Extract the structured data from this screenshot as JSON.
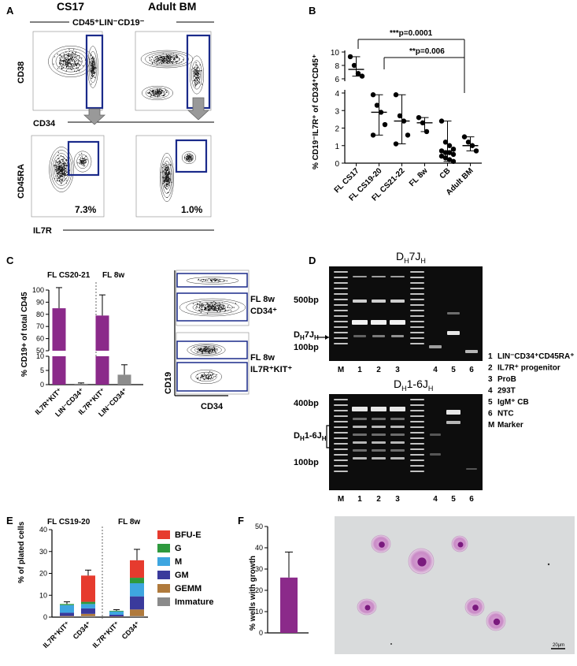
{
  "panels": {
    "A": {
      "letter": "A",
      "col1": "CS17",
      "col2": "Adult BM",
      "gate_label": "CD45⁺LIN⁻CD19⁻",
      "y_top": "CD38",
      "x_top": "CD34",
      "y_bottom": "CD45RA",
      "x_bottom": "IL7R",
      "pct1": "7.3%",
      "pct2": "1.0%"
    },
    "B": {
      "letter": "B",
      "ylabel": "% CD19⁻IL7R⁺ of CD34⁺CD45⁺",
      "sig1": "***p=0.0001",
      "sig2": "**p=0.006"
    },
    "C": {
      "letter": "C",
      "group1": "FL CS20-21",
      "group2": "FL 8w",
      "ylabel": "% CD19+ of total CD45",
      "facs1_l1": "FL 8w",
      "facs1_l2": "CD34⁺",
      "facs2_l1": "FL 8w",
      "facs2_l2": "IL7R⁺KIT⁺",
      "facs_y": "CD19",
      "facs_x": "CD34"
    },
    "D": {
      "letter": "D",
      "gel1_title": "Dₕ 7Jₕ",
      "gel1_title_main": "D",
      "gel1_title_sub1": "H",
      "gel1_title_mid": "7J",
      "gel1_title_sub2": "H",
      "gel2_title_main": "D",
      "gel2_title_sub1": "H",
      "gel2_title_mid": "1-6J",
      "gel2_title_sub2": "H",
      "marker500": "500bp",
      "marker100": "100bp",
      "marker400": "400bp",
      "marker100b": "100bp",
      "band1_main": "D",
      "band1_sub1": "H",
      "band1_mid": "7J",
      "band1_sub2": "H",
      "band2_main": "D",
      "band2_sub1": "H",
      "band2_mid": "1-6J",
      "band2_sub2": "H",
      "lanes": [
        "M",
        "1",
        "2",
        "3",
        "",
        "4",
        "5",
        "6"
      ],
      "legend": [
        {
          "n": "1",
          "label": "LIN⁻CD34⁺CD45RA⁺"
        },
        {
          "n": "2",
          "label": "IL7R⁺ progenitor"
        },
        {
          "n": "3",
          "label": "ProB"
        },
        {
          "n": "4",
          "label": "293T"
        },
        {
          "n": "5",
          "label": "IgM⁺ CB"
        },
        {
          "n": "6",
          "label": "NTC"
        },
        {
          "n": "M",
          "label": "Marker"
        }
      ]
    },
    "E": {
      "letter": "E",
      "group1": "FL CS19-20",
      "group2": "FL 8w",
      "ylabel": "% of plated cells"
    },
    "F": {
      "letter": "F",
      "ylabel": "% wells with growth",
      "scale": "20μm"
    }
  },
  "chart_data": [
    {
      "panel": "B",
      "type": "scatter",
      "categories": [
        "FL CS17",
        "FL CS19-20",
        "FL CS21-22",
        "FL 8w",
        "CB",
        "Adult BM"
      ],
      "y_ticks_lower": [
        "0",
        "1",
        "2",
        "3",
        "4"
      ],
      "y_ticks_upper": [
        "6",
        "8",
        "10"
      ],
      "ylim_lower": [
        0,
        4
      ],
      "ylim_upper": [
        6,
        10
      ],
      "points": [
        [
          9.3,
          8.0,
          6.8,
          6.4
        ],
        [
          3.9,
          3.3,
          2.9,
          2.2,
          1.6
        ],
        [
          3.9,
          2.7,
          2.4,
          1.6,
          1.1
        ],
        [
          2.6,
          2.3,
          1.8
        ],
        [
          2.4,
          1.2,
          1.0,
          0.8,
          0.7,
          0.6,
          0.6,
          0.5,
          0.4,
          0.3,
          0.2,
          0.1
        ],
        [
          1.5,
          1.2,
          1.0,
          0.7
        ]
      ],
      "medians": [
        7.4,
        2.9,
        2.4,
        2.3,
        0.7,
        1.0
      ],
      "err_low": [
        6.4,
        1.6,
        1.1,
        1.8,
        0.1,
        0.7
      ],
      "err_high": [
        9.3,
        3.9,
        3.9,
        2.6,
        2.4,
        1.5
      ]
    },
    {
      "panel": "C",
      "type": "bar",
      "categories": [
        "IL7R⁺KIT⁺",
        "LIN⁻CD34⁺",
        "IL7R⁺KIT⁺",
        "LIN⁻CD34⁺"
      ],
      "values": [
        85,
        0.3,
        79,
        3.5
      ],
      "errors": [
        17,
        0.3,
        17,
        3.5
      ],
      "colors": [
        "#8b2a8a",
        "#8c8c8c",
        "#8b2a8a",
        "#8c8c8c"
      ],
      "y_ticks_lower": [
        "0",
        "5",
        "10"
      ],
      "y_ticks_upper": [
        "50",
        "60",
        "70",
        "80",
        "90",
        "100"
      ],
      "ylim_lower": [
        0,
        10
      ],
      "ylim_upper": [
        50,
        100
      ]
    },
    {
      "panel": "E",
      "type": "bar",
      "stacked": true,
      "categories": [
        "IL7R⁺KIT⁺",
        "CD34⁺",
        "IL7R⁺KIT⁺",
        "CD34⁺"
      ],
      "series": [
        {
          "name": "Immature",
          "color": "#8a8a8a",
          "values": [
            0.2,
            0.5,
            0.1,
            0.5
          ]
        },
        {
          "name": "GEMM",
          "color": "#b07a3c",
          "values": [
            0.3,
            1.0,
            0.2,
            3.0
          ]
        },
        {
          "name": "GM",
          "color": "#3a3a9c",
          "values": [
            1.5,
            2.5,
            0.8,
            6.0
          ]
        },
        {
          "name": "M",
          "color": "#3ea6e0",
          "values": [
            3.5,
            2.0,
            1.5,
            6.0
          ]
        },
        {
          "name": "G",
          "color": "#2e9a3e",
          "values": [
            0.5,
            1.0,
            0.3,
            2.5
          ]
        },
        {
          "name": "BFU-E",
          "color": "#e63b2e",
          "values": [
            0.0,
            12.0,
            0.0,
            8.0
          ]
        }
      ],
      "errors_top": [
        1.0,
        2.5,
        0.5,
        5.0
      ],
      "y_ticks": [
        "0",
        "10",
        "20",
        "30",
        "40"
      ],
      "ylim": [
        0,
        40
      ]
    },
    {
      "panel": "F",
      "type": "bar",
      "categories": [
        ""
      ],
      "values": [
        26
      ],
      "errors": [
        12
      ],
      "colors": [
        "#8b2a8a"
      ],
      "y_ticks": [
        "0",
        "10",
        "20",
        "30",
        "40",
        "50"
      ],
      "ylim": [
        0,
        50
      ]
    }
  ]
}
